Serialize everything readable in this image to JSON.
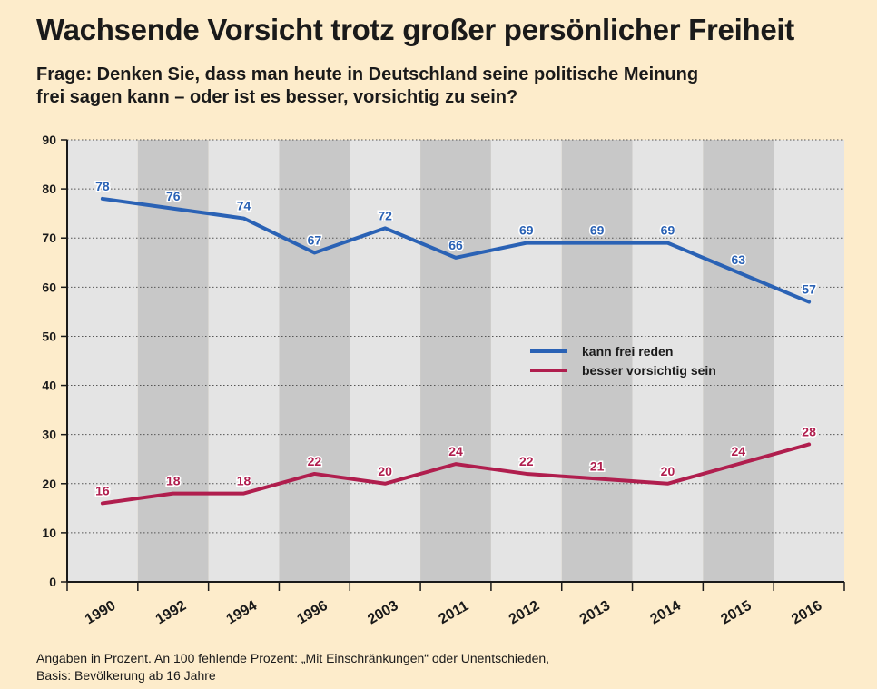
{
  "title": "Wachsende Vorsicht trotz großer persönlicher Freiheit",
  "question": {
    "line1": "Frage: Denken Sie, dass man heute in Deutschland seine politische Meinung",
    "line2": "frei sagen kann – oder ist es besser, vorsichtig zu sein?"
  },
  "footnote": {
    "line1": "Angaben in Prozent. An 100 fehlende Prozent: „Mit Einschränkungen“ oder Unentschieden,",
    "line2": "Basis: Bevölkerung ab 16 Jahre"
  },
  "colors": {
    "series_free": "#2a62b5",
    "series_careful": "#b01e4e",
    "band_light": "#e4e4e4",
    "band_dark": "#c8c8c8",
    "background": "#fdeccb"
  },
  "chart_data": {
    "type": "line",
    "categories": [
      "1990",
      "1992",
      "1994",
      "1996",
      "2003",
      "2011",
      "2012",
      "2013",
      "2014",
      "2015",
      "2016"
    ],
    "series": [
      {
        "name": "kann frei reden",
        "values": [
          78,
          76,
          74,
          67,
          72,
          66,
          69,
          69,
          69,
          63,
          57
        ]
      },
      {
        "name": "besser vorsichtig sein",
        "values": [
          16,
          18,
          18,
          22,
          20,
          24,
          22,
          21,
          20,
          24,
          28
        ]
      }
    ],
    "ylim": [
      0,
      90
    ],
    "yticks": [
      "0",
      "10",
      "20",
      "30",
      "40",
      "50",
      "60",
      "70",
      "80",
      "90"
    ],
    "grid": true,
    "legend": "center-right"
  }
}
